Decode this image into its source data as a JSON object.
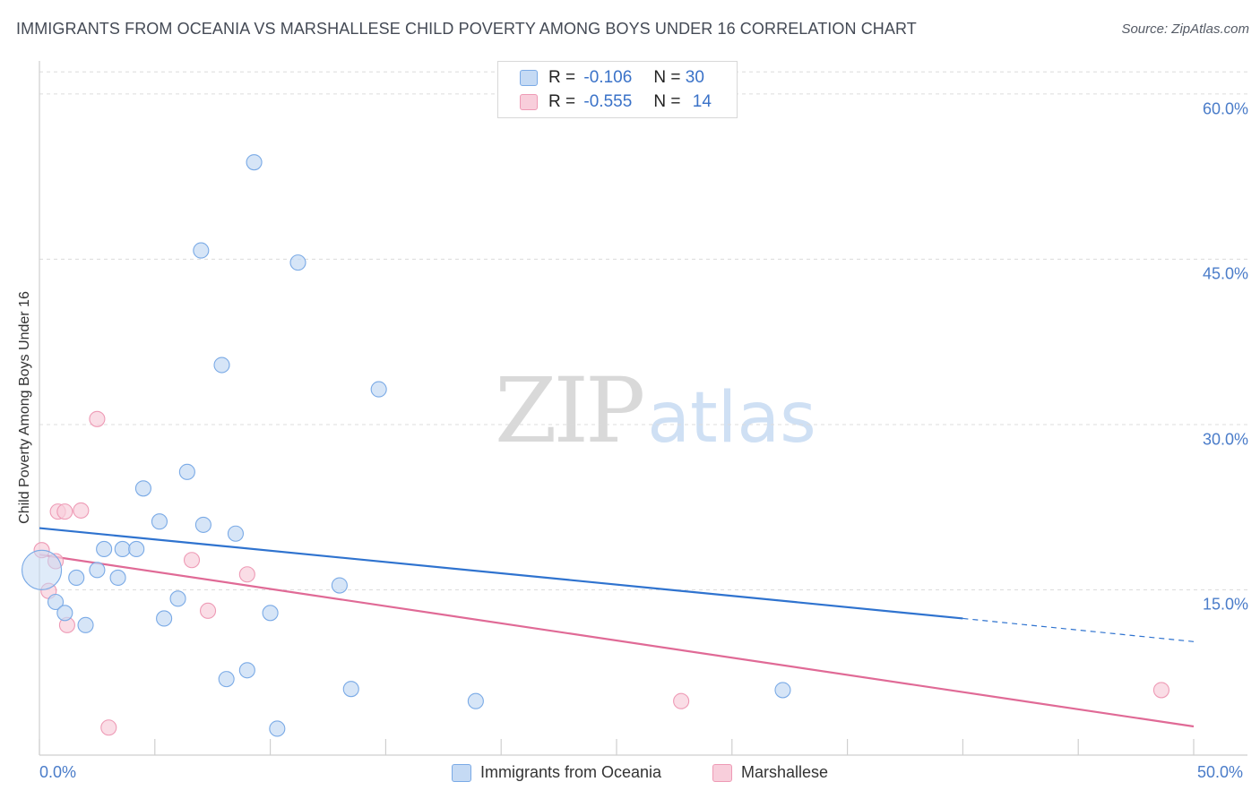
{
  "header": {
    "title": "IMMIGRANTS FROM OCEANIA VS MARSHALLESE CHILD POVERTY AMONG BOYS UNDER 16 CORRELATION CHART",
    "source": "Source: ZipAtlas.com"
  },
  "watermark": {
    "zip": "ZIP",
    "atlas": "atlas"
  },
  "legend": {
    "rows": [
      {
        "r_label": "R =",
        "r_value": "-0.106",
        "n_label": "N =",
        "n_value": "30"
      },
      {
        "r_label": "R =",
        "r_value": "-0.555",
        "n_label": "N =",
        "n_value": "14"
      }
    ]
  },
  "chart_data": {
    "type": "scatter",
    "title": "IMMIGRANTS FROM OCEANIA VS MARSHALLESE CHILD POVERTY AMONG BOYS UNDER 16 CORRELATION CHART",
    "ylabel": "Child Poverty Among Boys Under 16",
    "xlabel": "",
    "xlim": [
      0,
      50
    ],
    "ylim": [
      0,
      63
    ],
    "x_tick_labels": [
      "0.0%",
      "50.0%"
    ],
    "y_ticks": [
      15,
      30,
      45,
      60
    ],
    "y_tick_labels": [
      "15.0%",
      "30.0%",
      "45.0%",
      "60.0%"
    ],
    "grid": true,
    "legend_position": "top-center",
    "series": [
      {
        "name": "Immigrants from Oceania",
        "color": "#7aaae6",
        "fill": "#c5daf4",
        "r": -0.106,
        "n": 30,
        "trend": {
          "x": [
            0,
            40
          ],
          "y": [
            20.6,
            12.4
          ],
          "dashed_to": [
            50,
            10.3
          ]
        },
        "points": [
          {
            "x": 0.1,
            "y": 16.8,
            "big": true
          },
          {
            "x": 9.3,
            "y": 53.8
          },
          {
            "x": 7.0,
            "y": 45.8
          },
          {
            "x": 11.2,
            "y": 44.7
          },
          {
            "x": 7.9,
            "y": 35.4
          },
          {
            "x": 14.7,
            "y": 33.2
          },
          {
            "x": 6.4,
            "y": 25.7
          },
          {
            "x": 4.5,
            "y": 24.2
          },
          {
            "x": 5.2,
            "y": 21.2
          },
          {
            "x": 7.1,
            "y": 20.9
          },
          {
            "x": 8.5,
            "y": 20.1
          },
          {
            "x": 2.8,
            "y": 18.7
          },
          {
            "x": 3.6,
            "y": 18.7
          },
          {
            "x": 4.2,
            "y": 18.7
          },
          {
            "x": 2.5,
            "y": 16.8
          },
          {
            "x": 1.6,
            "y": 16.1
          },
          {
            "x": 3.4,
            "y": 16.1
          },
          {
            "x": 13.0,
            "y": 15.4
          },
          {
            "x": 0.7,
            "y": 13.9
          },
          {
            "x": 6.0,
            "y": 14.2
          },
          {
            "x": 1.1,
            "y": 12.9
          },
          {
            "x": 2.0,
            "y": 11.8
          },
          {
            "x": 5.4,
            "y": 12.4
          },
          {
            "x": 10.0,
            "y": 12.9
          },
          {
            "x": 9.0,
            "y": 7.7
          },
          {
            "x": 8.1,
            "y": 6.9
          },
          {
            "x": 13.5,
            "y": 6.0
          },
          {
            "x": 18.9,
            "y": 4.9
          },
          {
            "x": 32.2,
            "y": 5.9
          },
          {
            "x": 10.3,
            "y": 2.4
          }
        ]
      },
      {
        "name": "Marshallese",
        "color": "#ee9ab5",
        "fill": "#f8cedb",
        "r": -0.555,
        "n": 14,
        "trend": {
          "x": [
            0,
            50
          ],
          "y": [
            18.2,
            2.6
          ]
        },
        "points": [
          {
            "x": 2.5,
            "y": 30.5
          },
          {
            "x": 0.8,
            "y": 22.1
          },
          {
            "x": 1.1,
            "y": 22.1
          },
          {
            "x": 1.8,
            "y": 22.2
          },
          {
            "x": 0.1,
            "y": 18.6
          },
          {
            "x": 0.7,
            "y": 17.6
          },
          {
            "x": 6.6,
            "y": 17.7
          },
          {
            "x": 9.0,
            "y": 16.4
          },
          {
            "x": 0.4,
            "y": 14.9
          },
          {
            "x": 7.3,
            "y": 13.1
          },
          {
            "x": 1.2,
            "y": 11.8
          },
          {
            "x": 27.8,
            "y": 4.9
          },
          {
            "x": 48.6,
            "y": 5.9
          },
          {
            "x": 3.0,
            "y": 2.5
          }
        ]
      }
    ]
  }
}
